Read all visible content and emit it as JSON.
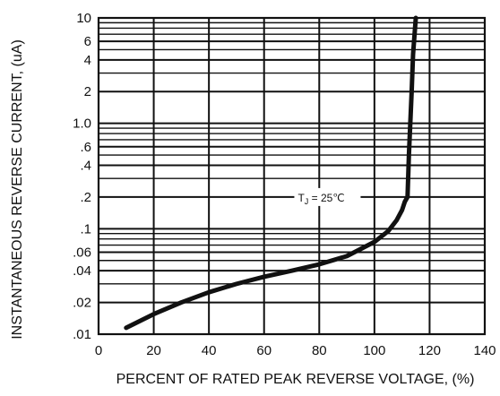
{
  "chart_data": {
    "type": "line",
    "title": "",
    "xlabel": "PERCENT OF RATED PEAK REVERSE VOLTAGE, (%)",
    "ylabel": "INSTANTANEOUS REVERSE CURRENT, (uA)",
    "xscale": "linear",
    "yscale": "log",
    "xlim": [
      0,
      140
    ],
    "ylim": [
      0.01,
      10
    ],
    "grid": true,
    "x_ticks": [
      0,
      20,
      40,
      60,
      80,
      100,
      120,
      140
    ],
    "x_tick_labels": [
      "0",
      "20",
      "40",
      "60",
      "80",
      "100",
      "120",
      "140"
    ],
    "y_ticks": [
      0.01,
      0.02,
      0.04,
      0.06,
      0.1,
      0.2,
      0.4,
      0.6,
      1,
      2,
      4,
      6,
      10
    ],
    "y_tick_labels": [
      ".01",
      ".02",
      ".04",
      ".06",
      ".1",
      ".2",
      ".4",
      ".6",
      "1.0",
      "2",
      "4",
      "6",
      "10"
    ],
    "y_minor_gridlines": [
      0.03,
      0.05,
      0.07,
      0.08,
      0.09,
      0.3,
      0.5,
      0.7,
      0.8,
      0.9,
      3,
      5,
      7,
      8,
      9
    ],
    "series": [
      {
        "x": [
          10,
          20,
          30,
          40,
          50,
          60,
          70,
          80,
          90,
          100,
          105,
          108,
          110,
          111,
          112,
          112.5,
          113,
          113.5,
          114,
          115
        ],
        "y": [
          0.0115,
          0.0155,
          0.02,
          0.025,
          0.03,
          0.035,
          0.04,
          0.046,
          0.055,
          0.075,
          0.095,
          0.12,
          0.15,
          0.18,
          0.2,
          0.5,
          1.0,
          2.0,
          4.5,
          10
        ]
      }
    ],
    "annotations": [
      {
        "text_main": "T",
        "text_sub": "J",
        "text_rest": " = 25℃",
        "x": 82,
        "y": 0.2
      }
    ]
  }
}
